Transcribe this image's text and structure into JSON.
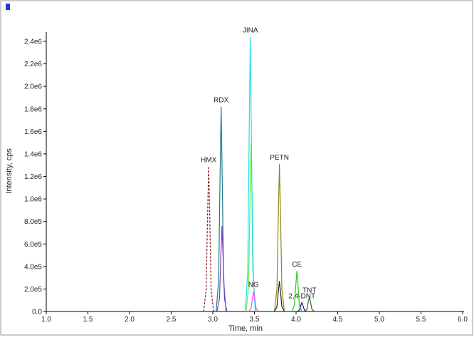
{
  "chart_data": {
    "type": "line",
    "xlabel": "Time, min",
    "ylabel": "Intensity, cps",
    "xlim": [
      1.0,
      6.0
    ],
    "xticks": [
      {
        "value": 1.0,
        "label": "1.0"
      },
      {
        "value": 1.5,
        "label": "1.5"
      },
      {
        "value": 2.0,
        "label": "2.0"
      },
      {
        "value": 2.5,
        "label": "2.5"
      },
      {
        "value": 3.0,
        "label": "3.0"
      },
      {
        "value": 3.5,
        "label": "3.5"
      },
      {
        "value": 4.0,
        "label": "4.0"
      },
      {
        "value": 4.5,
        "label": "4.5"
      },
      {
        "value": 5.0,
        "label": "5.0"
      },
      {
        "value": 5.5,
        "label": "5.5"
      },
      {
        "value": 6.0,
        "label": "6.0"
      }
    ],
    "ylim": [
      0,
      2400000
    ],
    "yticks": [
      {
        "value": 0,
        "label": "0.0"
      },
      {
        "value": 200000,
        "label": "2.0e5"
      },
      {
        "value": 400000,
        "label": "4.0e5"
      },
      {
        "value": 600000,
        "label": "6.0e5"
      },
      {
        "value": 800000,
        "label": "8.0e5"
      },
      {
        "value": 1000000,
        "label": "1.0e6"
      },
      {
        "value": 1200000,
        "label": "1.2e6"
      },
      {
        "value": 1400000,
        "label": "1.4e6"
      },
      {
        "value": 1600000,
        "label": "1.6e6"
      },
      {
        "value": 1800000,
        "label": "1.8e6"
      },
      {
        "value": 2000000,
        "label": "2.0e6"
      },
      {
        "value": 2200000,
        "label": "2.2e6"
      },
      {
        "value": 2400000,
        "label": "2.4e6"
      }
    ],
    "series": [
      {
        "label": "HMX",
        "color": "#8b1a1a",
        "style": "dashed",
        "x": [
          2.89,
          2.92,
          2.935,
          2.95,
          2.965,
          2.98,
          3.01
        ],
        "values": [
          0,
          193500,
          774000,
          1290000,
          774000,
          193500,
          0
        ]
      },
      {
        "label": "RDX",
        "color": "#1f7a8c",
        "x": [
          3.04,
          3.07,
          3.085,
          3.1,
          3.115,
          3.13,
          3.16
        ],
        "values": [
          0,
          273000,
          1092000,
          1820000,
          1092000,
          273000,
          0
        ]
      },
      {
        "color": "#7a3fbf",
        "x": [
          3.05,
          3.08,
          3.095,
          3.11,
          3.125,
          3.14,
          3.17
        ],
        "values": [
          0,
          114000,
          456000,
          760000,
          456000,
          114000,
          0
        ]
      },
      {
        "color": "#66ee44",
        "x": [
          3.4,
          3.43,
          3.445,
          3.46,
          3.475,
          3.49,
          3.52
        ],
        "values": [
          0,
          225000,
          900000,
          1500000,
          900000,
          225000,
          0
        ]
      },
      {
        "label": "JINA",
        "color": "#22e0e8",
        "x": [
          3.39,
          3.42,
          3.435,
          3.45,
          3.465,
          3.48,
          3.51
        ],
        "values": [
          0,
          366000,
          1464000,
          2440000,
          1464000,
          366000,
          0
        ]
      },
      {
        "label": "NG",
        "color": "#ff44ff",
        "x": [
          3.43,
          3.46,
          3.475,
          3.49,
          3.505,
          3.52,
          3.55
        ],
        "values": [
          0,
          27000,
          108000,
          180000,
          108000,
          27000,
          0
        ]
      },
      {
        "label": "PETN",
        "color": "#8a8a10",
        "x": [
          3.74,
          3.77,
          3.785,
          3.8,
          3.815,
          3.83,
          3.86
        ],
        "values": [
          0,
          196500,
          786000,
          1310000,
          786000,
          196500,
          0
        ]
      },
      {
        "color": "#222222",
        "x": [
          3.74,
          3.77,
          3.785,
          3.8,
          3.815,
          3.83,
          3.86
        ],
        "values": [
          0,
          40500,
          162000,
          270000,
          162000,
          40500,
          0
        ]
      },
      {
        "label": "CE",
        "color": "#22cc22",
        "x": [
          3.95,
          3.98,
          3.995,
          4.01,
          4.025,
          4.04,
          4.07
        ],
        "values": [
          0,
          54000,
          216000,
          360000,
          216000,
          54000,
          0
        ]
      },
      {
        "label": "2,4-DNT",
        "color": "#1a1a99",
        "x": [
          4.01,
          4.04,
          4.055,
          4.07,
          4.085,
          4.1,
          4.13
        ],
        "values": [
          0,
          12000,
          48000,
          80000,
          48000,
          12000,
          0
        ]
      },
      {
        "label": "TNT",
        "color": "#2f6f2f",
        "x": [
          4.1,
          4.13,
          4.145,
          4.16,
          4.175,
          4.19,
          4.22
        ],
        "values": [
          0,
          19500,
          78000,
          130000,
          78000,
          19500,
          0
        ]
      }
    ]
  }
}
